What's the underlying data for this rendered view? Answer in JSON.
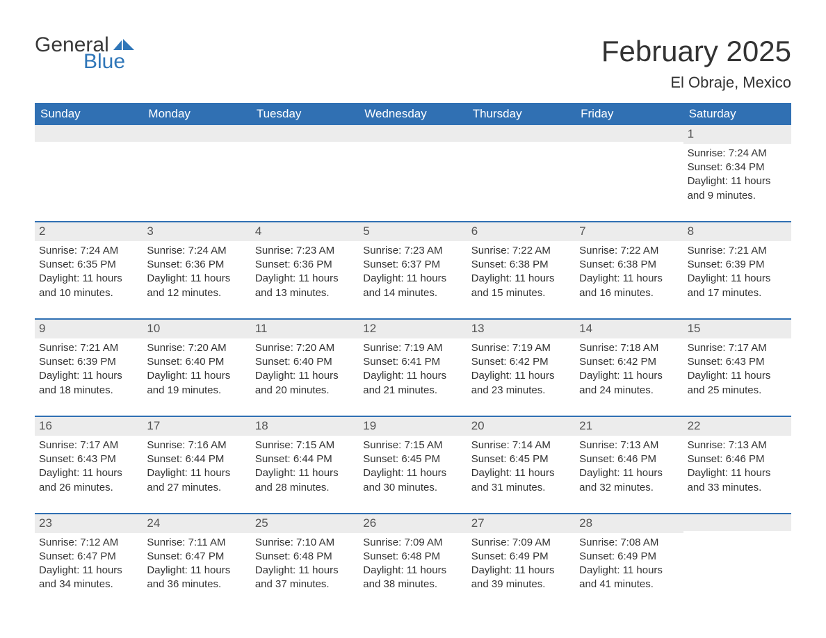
{
  "logo": {
    "word1": "General",
    "word2": "Blue"
  },
  "title": "February 2025",
  "subtitle": "El Obraje, Mexico",
  "colors": {
    "header_bg": "#3070b3",
    "header_text": "#ffffff",
    "daynum_bg": "#ececec",
    "week_border": "#3070b3",
    "text": "#333333",
    "logo_gray": "#3a3a3a",
    "logo_blue": "#2f76b8",
    "page_bg": "#ffffff"
  },
  "typography": {
    "title_fontsize": 42,
    "subtitle_fontsize": 22,
    "dow_fontsize": 17,
    "body_fontsize": 15
  },
  "layout": {
    "columns": 7,
    "rows": 5
  },
  "days_of_week": [
    "Sunday",
    "Monday",
    "Tuesday",
    "Wednesday",
    "Thursday",
    "Friday",
    "Saturday"
  ],
  "weeks": [
    [
      {
        "blank": true
      },
      {
        "blank": true
      },
      {
        "blank": true
      },
      {
        "blank": true
      },
      {
        "blank": true
      },
      {
        "blank": true
      },
      {
        "num": "1",
        "sunrise": "Sunrise: 7:24 AM",
        "sunset": "Sunset: 6:34 PM",
        "daylight": "Daylight: 11 hours and 9 minutes."
      }
    ],
    [
      {
        "num": "2",
        "sunrise": "Sunrise: 7:24 AM",
        "sunset": "Sunset: 6:35 PM",
        "daylight": "Daylight: 11 hours and 10 minutes."
      },
      {
        "num": "3",
        "sunrise": "Sunrise: 7:24 AM",
        "sunset": "Sunset: 6:36 PM",
        "daylight": "Daylight: 11 hours and 12 minutes."
      },
      {
        "num": "4",
        "sunrise": "Sunrise: 7:23 AM",
        "sunset": "Sunset: 6:36 PM",
        "daylight": "Daylight: 11 hours and 13 minutes."
      },
      {
        "num": "5",
        "sunrise": "Sunrise: 7:23 AM",
        "sunset": "Sunset: 6:37 PM",
        "daylight": "Daylight: 11 hours and 14 minutes."
      },
      {
        "num": "6",
        "sunrise": "Sunrise: 7:22 AM",
        "sunset": "Sunset: 6:38 PM",
        "daylight": "Daylight: 11 hours and 15 minutes."
      },
      {
        "num": "7",
        "sunrise": "Sunrise: 7:22 AM",
        "sunset": "Sunset: 6:38 PM",
        "daylight": "Daylight: 11 hours and 16 minutes."
      },
      {
        "num": "8",
        "sunrise": "Sunrise: 7:21 AM",
        "sunset": "Sunset: 6:39 PM",
        "daylight": "Daylight: 11 hours and 17 minutes."
      }
    ],
    [
      {
        "num": "9",
        "sunrise": "Sunrise: 7:21 AM",
        "sunset": "Sunset: 6:39 PM",
        "daylight": "Daylight: 11 hours and 18 minutes."
      },
      {
        "num": "10",
        "sunrise": "Sunrise: 7:20 AM",
        "sunset": "Sunset: 6:40 PM",
        "daylight": "Daylight: 11 hours and 19 minutes."
      },
      {
        "num": "11",
        "sunrise": "Sunrise: 7:20 AM",
        "sunset": "Sunset: 6:40 PM",
        "daylight": "Daylight: 11 hours and 20 minutes."
      },
      {
        "num": "12",
        "sunrise": "Sunrise: 7:19 AM",
        "sunset": "Sunset: 6:41 PM",
        "daylight": "Daylight: 11 hours and 21 minutes."
      },
      {
        "num": "13",
        "sunrise": "Sunrise: 7:19 AM",
        "sunset": "Sunset: 6:42 PM",
        "daylight": "Daylight: 11 hours and 23 minutes."
      },
      {
        "num": "14",
        "sunrise": "Sunrise: 7:18 AM",
        "sunset": "Sunset: 6:42 PM",
        "daylight": "Daylight: 11 hours and 24 minutes."
      },
      {
        "num": "15",
        "sunrise": "Sunrise: 7:17 AM",
        "sunset": "Sunset: 6:43 PM",
        "daylight": "Daylight: 11 hours and 25 minutes."
      }
    ],
    [
      {
        "num": "16",
        "sunrise": "Sunrise: 7:17 AM",
        "sunset": "Sunset: 6:43 PM",
        "daylight": "Daylight: 11 hours and 26 minutes."
      },
      {
        "num": "17",
        "sunrise": "Sunrise: 7:16 AM",
        "sunset": "Sunset: 6:44 PM",
        "daylight": "Daylight: 11 hours and 27 minutes."
      },
      {
        "num": "18",
        "sunrise": "Sunrise: 7:15 AM",
        "sunset": "Sunset: 6:44 PM",
        "daylight": "Daylight: 11 hours and 28 minutes."
      },
      {
        "num": "19",
        "sunrise": "Sunrise: 7:15 AM",
        "sunset": "Sunset: 6:45 PM",
        "daylight": "Daylight: 11 hours and 30 minutes."
      },
      {
        "num": "20",
        "sunrise": "Sunrise: 7:14 AM",
        "sunset": "Sunset: 6:45 PM",
        "daylight": "Daylight: 11 hours and 31 minutes."
      },
      {
        "num": "21",
        "sunrise": "Sunrise: 7:13 AM",
        "sunset": "Sunset: 6:46 PM",
        "daylight": "Daylight: 11 hours and 32 minutes."
      },
      {
        "num": "22",
        "sunrise": "Sunrise: 7:13 AM",
        "sunset": "Sunset: 6:46 PM",
        "daylight": "Daylight: 11 hours and 33 minutes."
      }
    ],
    [
      {
        "num": "23",
        "sunrise": "Sunrise: 7:12 AM",
        "sunset": "Sunset: 6:47 PM",
        "daylight": "Daylight: 11 hours and 34 minutes."
      },
      {
        "num": "24",
        "sunrise": "Sunrise: 7:11 AM",
        "sunset": "Sunset: 6:47 PM",
        "daylight": "Daylight: 11 hours and 36 minutes."
      },
      {
        "num": "25",
        "sunrise": "Sunrise: 7:10 AM",
        "sunset": "Sunset: 6:48 PM",
        "daylight": "Daylight: 11 hours and 37 minutes."
      },
      {
        "num": "26",
        "sunrise": "Sunrise: 7:09 AM",
        "sunset": "Sunset: 6:48 PM",
        "daylight": "Daylight: 11 hours and 38 minutes."
      },
      {
        "num": "27",
        "sunrise": "Sunrise: 7:09 AM",
        "sunset": "Sunset: 6:49 PM",
        "daylight": "Daylight: 11 hours and 39 minutes."
      },
      {
        "num": "28",
        "sunrise": "Sunrise: 7:08 AM",
        "sunset": "Sunset: 6:49 PM",
        "daylight": "Daylight: 11 hours and 41 minutes."
      },
      {
        "blank": true
      }
    ]
  ]
}
